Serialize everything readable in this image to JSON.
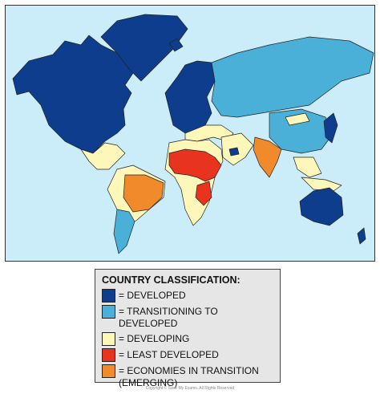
{
  "legend": {
    "title": "COUNTRY CLASSIFICATION:",
    "items": [
      {
        "label": "= DEVELOPED",
        "color": "#0d3d8c"
      },
      {
        "label": "= TRANSITIONING TO DEVELOPED",
        "color": "#4bb0d8"
      },
      {
        "label": "= DEVELOPING",
        "color": "#fdf7ba"
      },
      {
        "label": "= LEAST DEVELOPED",
        "color": "#e8331f"
      },
      {
        "label": "= ECONOMIES IN TRANSITION (EMERGING)",
        "color": "#f08a2b"
      }
    ]
  },
  "copyright": "Copyright © Save My Exams. All Rights Reserved"
}
